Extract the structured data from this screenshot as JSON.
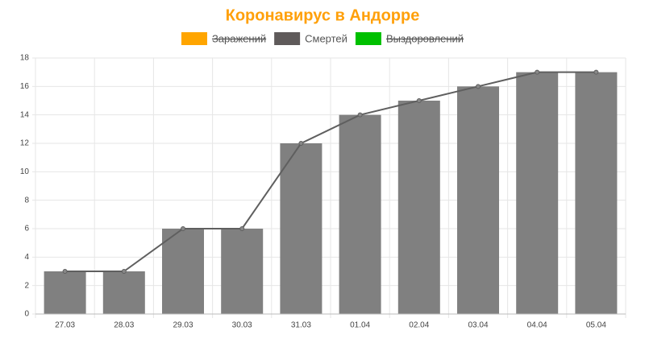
{
  "chart_data": {
    "type": "bar",
    "title": "Коронавирус в Андорре",
    "legend": [
      {
        "name": "Заражений",
        "color": "#ffa500",
        "hidden": true
      },
      {
        "name": "Смертей",
        "color": "#5f5a5a",
        "hidden": false
      },
      {
        "name": "Выздоровлений",
        "color": "#00c000",
        "hidden": true
      }
    ],
    "categories": [
      "27.03",
      "28.03",
      "29.03",
      "30.03",
      "31.03",
      "01.04",
      "02.04",
      "03.04",
      "04.04",
      "05.04"
    ],
    "values": [
      3,
      3,
      6,
      6,
      12,
      14,
      15,
      16,
      17,
      17
    ],
    "color": "#808080",
    "line_color": "#5f5f5f",
    "ylim": [
      0,
      18
    ],
    "yticks": [
      0,
      2,
      4,
      6,
      8,
      10,
      12,
      14,
      16,
      18
    ],
    "grid": true
  }
}
